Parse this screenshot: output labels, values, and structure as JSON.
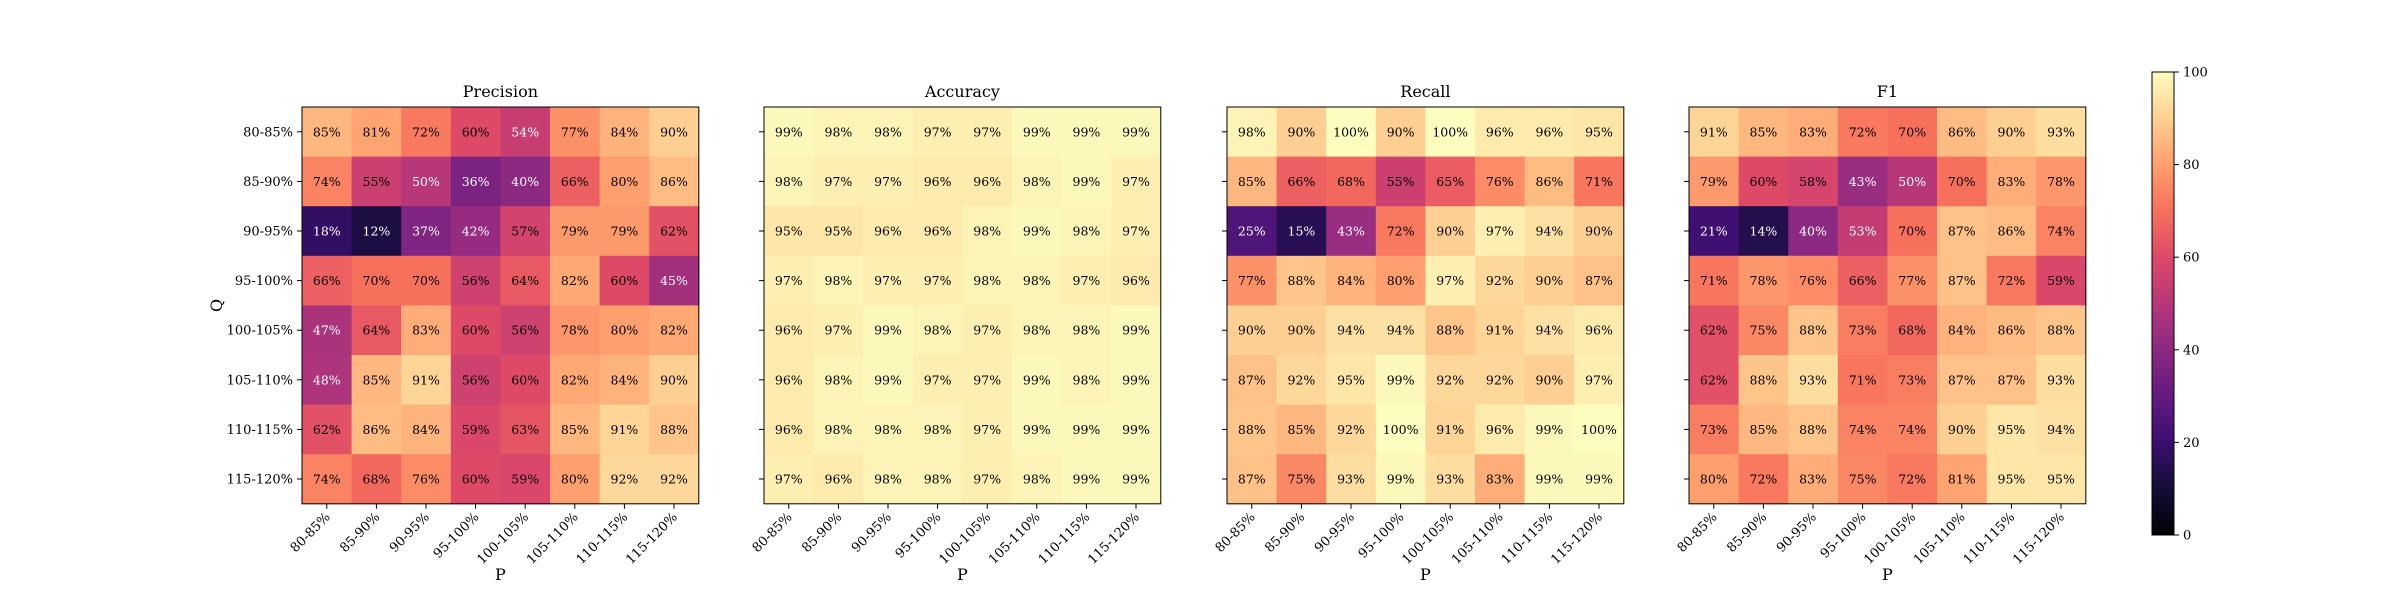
{
  "chart_data": {
    "type": "heatmap",
    "colormap": "magma",
    "value_format": "percent",
    "vmin": 0,
    "vmax": 100,
    "x_tick_labels": [
      "80-85%",
      "85-90%",
      "90-95%",
      "95-100%",
      "100-105%",
      "105-110%",
      "110-115%",
      "115-120%"
    ],
    "y_tick_labels": [
      "80-85%",
      "85-90%",
      "90-95%",
      "95-100%",
      "100-105%",
      "105-110%",
      "110-115%",
      "115-120%"
    ],
    "xlabel": "P",
    "ylabel": "Q",
    "colorbar": {
      "ticks": [
        "0",
        "20",
        "40",
        "60",
        "80",
        "100"
      ]
    },
    "panels": [
      {
        "title": "Precision",
        "values": [
          [
            85,
            81,
            72,
            60,
            54,
            77,
            84,
            90
          ],
          [
            74,
            55,
            50,
            36,
            40,
            66,
            80,
            86
          ],
          [
            18,
            12,
            37,
            42,
            57,
            79,
            79,
            62
          ],
          [
            66,
            70,
            70,
            56,
            64,
            82,
            60,
            45
          ],
          [
            47,
            64,
            83,
            60,
            56,
            78,
            80,
            82
          ],
          [
            48,
            85,
            91,
            56,
            60,
            82,
            84,
            90
          ],
          [
            62,
            86,
            84,
            59,
            63,
            85,
            91,
            88
          ],
          [
            74,
            68,
            76,
            60,
            59,
            80,
            92,
            92
          ]
        ]
      },
      {
        "title": "Accuracy",
        "values": [
          [
            99,
            98,
            98,
            97,
            97,
            99,
            99,
            99
          ],
          [
            98,
            97,
            97,
            96,
            96,
            98,
            99,
            97
          ],
          [
            95,
            95,
            96,
            96,
            98,
            99,
            98,
            97
          ],
          [
            97,
            98,
            97,
            97,
            98,
            98,
            97,
            96
          ],
          [
            96,
            97,
            99,
            98,
            97,
            98,
            98,
            99
          ],
          [
            96,
            98,
            99,
            97,
            97,
            99,
            98,
            99
          ],
          [
            96,
            98,
            98,
            98,
            97,
            99,
            99,
            99
          ],
          [
            97,
            96,
            98,
            98,
            97,
            98,
            99,
            99
          ]
        ]
      },
      {
        "title": "Recall",
        "values": [
          [
            98,
            90,
            100,
            90,
            100,
            96,
            96,
            95
          ],
          [
            85,
            66,
            68,
            55,
            65,
            76,
            86,
            71
          ],
          [
            25,
            15,
            43,
            72,
            90,
            97,
            94,
            90
          ],
          [
            77,
            88,
            84,
            80,
            97,
            92,
            90,
            87
          ],
          [
            90,
            90,
            94,
            94,
            88,
            91,
            94,
            96
          ],
          [
            87,
            92,
            95,
            99,
            92,
            92,
            90,
            97
          ],
          [
            88,
            85,
            92,
            100,
            91,
            96,
            99,
            100
          ],
          [
            87,
            75,
            93,
            99,
            93,
            83,
            99,
            99
          ]
        ]
      },
      {
        "title": "F1",
        "values": [
          [
            91,
            85,
            83,
            72,
            70,
            86,
            90,
            93
          ],
          [
            79,
            60,
            58,
            43,
            50,
            70,
            83,
            78
          ],
          [
            21,
            14,
            40,
            53,
            70,
            87,
            86,
            74
          ],
          [
            71,
            78,
            76,
            66,
            77,
            87,
            72,
            59
          ],
          [
            62,
            75,
            88,
            73,
            68,
            84,
            86,
            88
          ],
          [
            62,
            88,
            93,
            71,
            73,
            87,
            87,
            93
          ],
          [
            73,
            85,
            88,
            74,
            74,
            90,
            95,
            94
          ],
          [
            80,
            72,
            83,
            75,
            72,
            81,
            95,
            95
          ]
        ]
      }
    ]
  }
}
